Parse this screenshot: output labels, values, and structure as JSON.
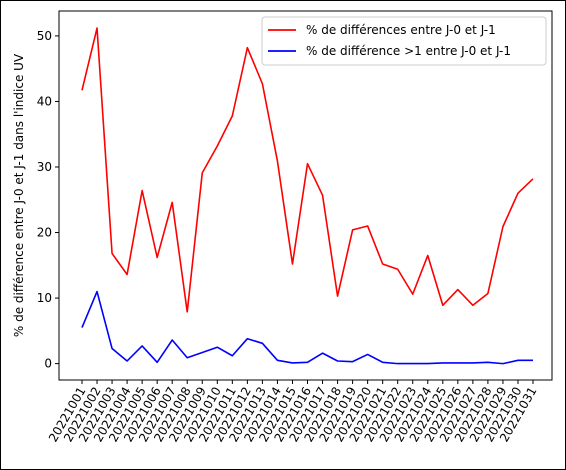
{
  "chart_data": {
    "type": "line",
    "title": "",
    "xlabel": "",
    "ylabel": "% de différence entre J-0 et J-1 dans l'indice UV",
    "categories": [
      "20221001",
      "20221002",
      "20221003",
      "20221004",
      "20221005",
      "20221006",
      "20221007",
      "20221008",
      "20221009",
      "20221010",
      "20221011",
      "20221012",
      "20221013",
      "20221014",
      "20221015",
      "20221016",
      "20221017",
      "20221018",
      "20221019",
      "20221020",
      "20221021",
      "20221022",
      "20221023",
      "20221024",
      "20221025",
      "20221026",
      "20221027",
      "20221028",
      "20221029",
      "20221030",
      "20221031"
    ],
    "ylim": [
      -2.5,
      53.8
    ],
    "yticks": [
      0,
      10,
      20,
      30,
      40,
      50
    ],
    "grid": false,
    "legend_position": "top-right",
    "series": [
      {
        "name": "% de différences entre J-0 et J-1",
        "color": "#ff0000",
        "values": [
          41.7,
          51.2,
          16.8,
          13.6,
          26.4,
          16.2,
          24.6,
          7.9,
          29.1,
          33.2,
          37.8,
          48.2,
          42.7,
          30.9,
          15.2,
          30.5,
          25.7,
          10.3,
          20.4,
          21.0,
          15.2,
          14.4,
          10.6,
          16.5,
          8.9,
          11.3,
          8.9,
          10.7,
          20.9,
          26.0,
          28.2
        ]
      },
      {
        "name": "% de différence >1 entre J-0 et J-1",
        "color": "#0000ff",
        "values": [
          5.5,
          11.0,
          2.3,
          0.4,
          2.7,
          0.2,
          3.6,
          0.9,
          1.7,
          2.5,
          1.2,
          3.8,
          3.1,
          0.5,
          0.1,
          0.2,
          1.6,
          0.4,
          0.3,
          1.4,
          0.2,
          0.0,
          0.0,
          0.0,
          0.1,
          0.1,
          0.1,
          0.2,
          0.0,
          0.5,
          0.5
        ]
      }
    ]
  }
}
